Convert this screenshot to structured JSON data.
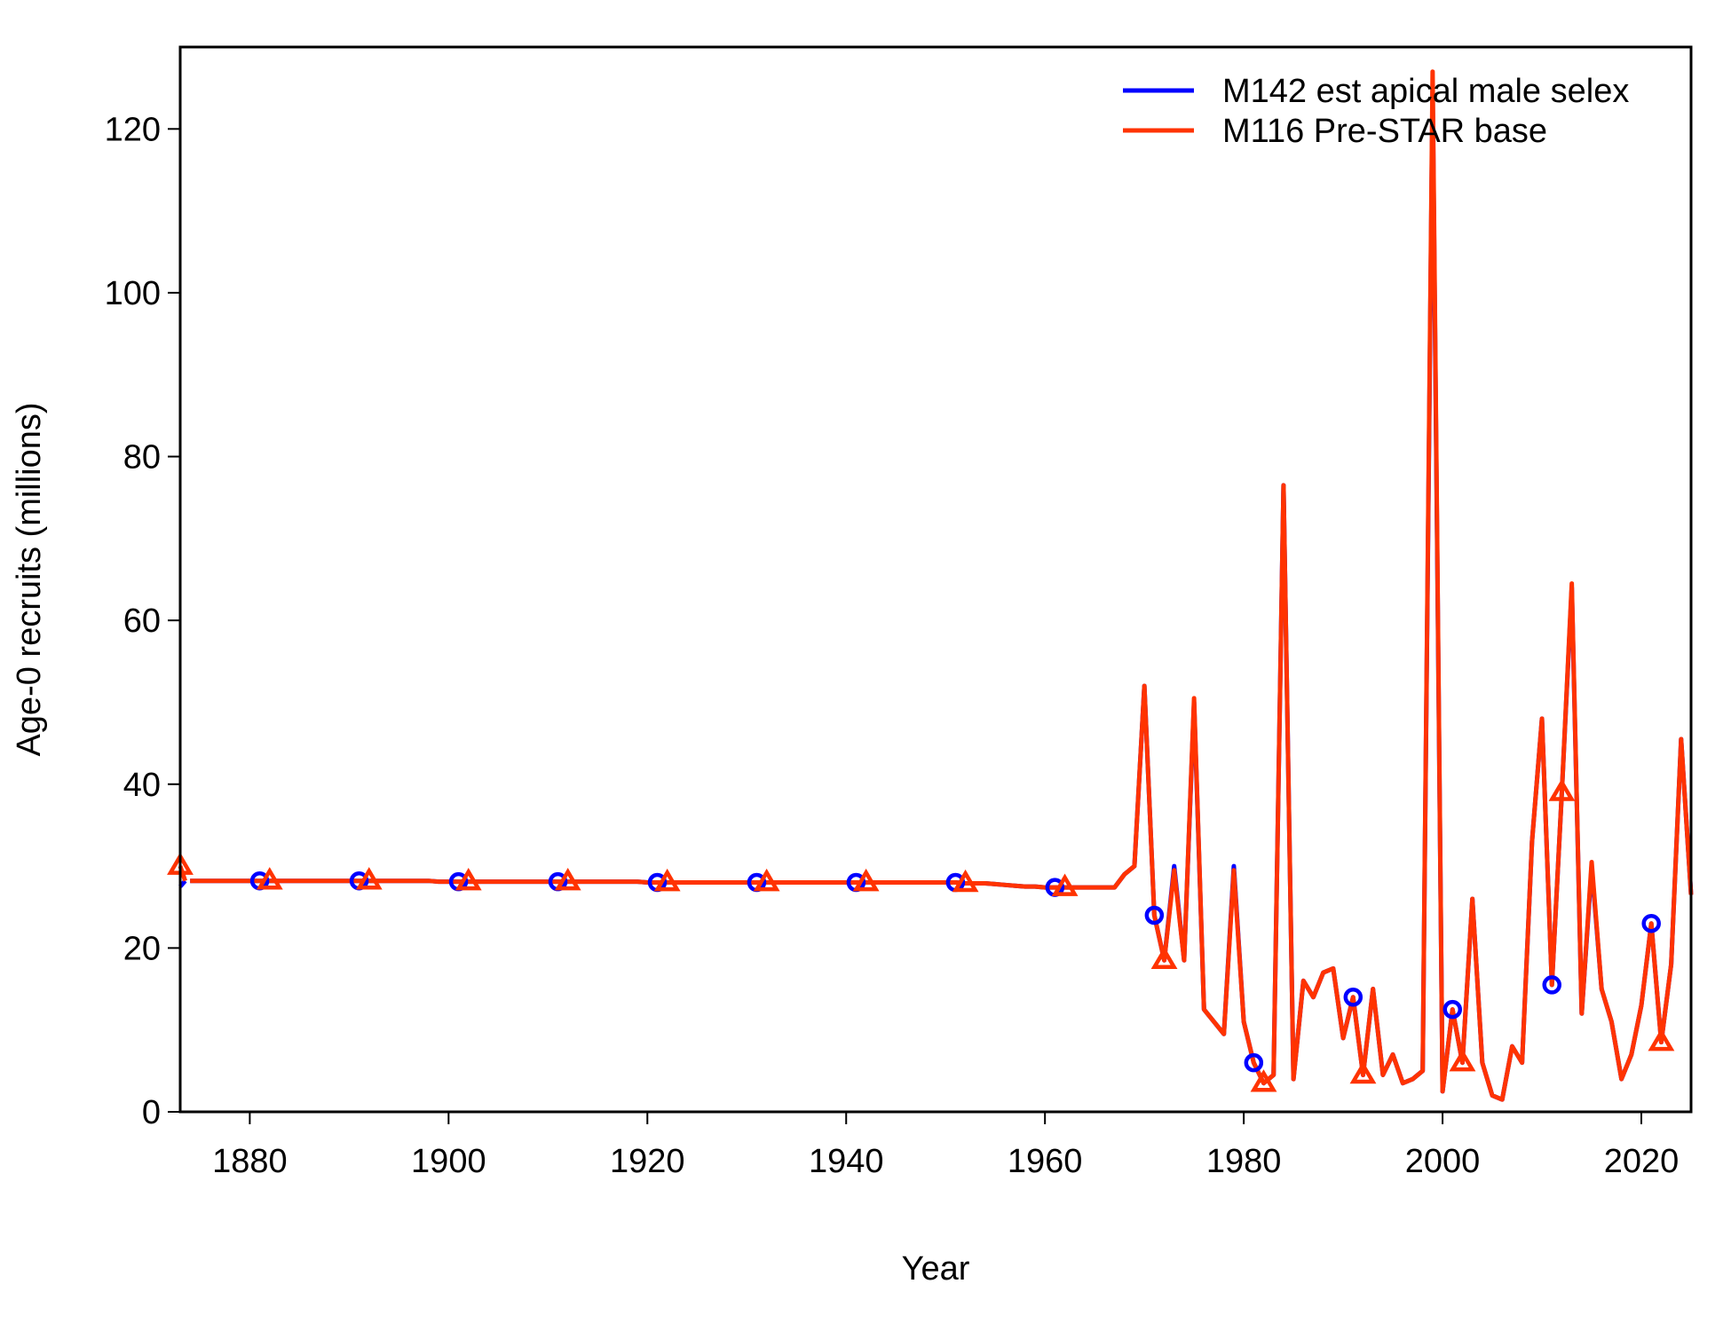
{
  "chart_data": {
    "type": "line",
    "title": "",
    "xlabel": "Year",
    "ylabel": "Age-0 recruits (millions)",
    "xlim": [
      1873,
      2025
    ],
    "ylim": [
      0,
      130
    ],
    "x_ticks": [
      1880,
      1900,
      1920,
      1940,
      1960,
      1980,
      2000,
      2020
    ],
    "y_ticks": [
      0,
      20,
      40,
      60,
      80,
      100,
      120
    ],
    "x_tick_labels": [
      "1880",
      "1900",
      "1920",
      "1940",
      "1960",
      "1980",
      "2000",
      "2020"
    ],
    "y_tick_labels": [
      "0",
      "20",
      "40",
      "60",
      "80",
      "100",
      "120"
    ],
    "grid": false,
    "legend_position": "top-right",
    "series": [
      {
        "name": "M142 est apical male selex",
        "color": "#0000ff",
        "marker": "circle",
        "x_start": 1873,
        "first_point": 27.5,
        "values": [
          28.2,
          28.2,
          28.2,
          28.2,
          28.2,
          28.2,
          28.2,
          28.2,
          28.2,
          28.2,
          28.2,
          28.2,
          28.2,
          28.2,
          28.2,
          28.2,
          28.2,
          28.2,
          28.2,
          28.2,
          28.2,
          28.2,
          28.2,
          28.2,
          28.2,
          28.1,
          28.1,
          28.1,
          28.1,
          28.1,
          28.1,
          28.1,
          28.1,
          28.1,
          28.1,
          28.1,
          28.1,
          28.1,
          28.1,
          28.1,
          28.1,
          28.1,
          28.1,
          28.1,
          28.1,
          28.1,
          28.0,
          28.0,
          28.0,
          28.0,
          28.0,
          28.0,
          28.0,
          28.0,
          28.0,
          28.0,
          28.0,
          28.0,
          28.0,
          28.0,
          28.0,
          28.0,
          28.0,
          28.0,
          28.0,
          28.0,
          28.0,
          28.0,
          28.0,
          28.0,
          28.0,
          28.0,
          28.0,
          28.0,
          28.0,
          28.0,
          28.0,
          28.0,
          27.9,
          27.9,
          27.9,
          27.8,
          27.7,
          27.6,
          27.5,
          27.5,
          27.4,
          27.4,
          27.4,
          27.4,
          27.4,
          27.4,
          27.4,
          27.4,
          29.0,
          30.0,
          52.0,
          24.0,
          18.5,
          30.0,
          18.5,
          50.0,
          12.5,
          11.0,
          9.5,
          30.0,
          11.0,
          6.0,
          3.5,
          4.5,
          76.5,
          4.0,
          16.0,
          14.0,
          17.0,
          17.5,
          9.0,
          14.0,
          4.5,
          15.0,
          4.5,
          7.0,
          3.5,
          4.0,
          5.0,
          125.0,
          2.5,
          12.5,
          6.0,
          26.0,
          6.0,
          2.0,
          1.5,
          8.0,
          6.0,
          33.0,
          48.0,
          15.5,
          39.0,
          64.0,
          12.0,
          30.0,
          15.0,
          11.0,
          4.0,
          7.0,
          13.0,
          23.0,
          8.5,
          18.0,
          45.5,
          26.5
        ],
        "marker_x": [
          1881,
          1891,
          1901,
          1911,
          1921,
          1931,
          1941,
          1951,
          1961,
          1971,
          1981,
          1991,
          2001,
          2011,
          2021
        ]
      },
      {
        "name": "M116 Pre-STAR base",
        "color": "#ff3300",
        "marker": "triangle",
        "x_start": 1873,
        "first_point": 30.0,
        "values": [
          28.2,
          28.2,
          28.2,
          28.2,
          28.2,
          28.2,
          28.2,
          28.2,
          28.2,
          28.2,
          28.2,
          28.2,
          28.2,
          28.2,
          28.2,
          28.2,
          28.2,
          28.2,
          28.2,
          28.2,
          28.2,
          28.2,
          28.2,
          28.2,
          28.2,
          28.1,
          28.1,
          28.1,
          28.1,
          28.1,
          28.1,
          28.1,
          28.1,
          28.1,
          28.1,
          28.1,
          28.1,
          28.1,
          28.1,
          28.1,
          28.1,
          28.1,
          28.1,
          28.1,
          28.1,
          28.1,
          28.0,
          28.0,
          28.0,
          28.0,
          28.0,
          28.0,
          28.0,
          28.0,
          28.0,
          28.0,
          28.0,
          28.0,
          28.0,
          28.0,
          28.0,
          28.0,
          28.0,
          28.0,
          28.0,
          28.0,
          28.0,
          28.0,
          28.0,
          28.0,
          28.0,
          28.0,
          28.0,
          28.0,
          28.0,
          28.0,
          28.0,
          28.0,
          27.9,
          27.9,
          27.9,
          27.8,
          27.7,
          27.6,
          27.5,
          27.5,
          27.4,
          27.4,
          27.4,
          27.4,
          27.4,
          27.4,
          27.4,
          27.4,
          29.0,
          30.0,
          52.0,
          24.0,
          18.5,
          29.5,
          18.5,
          50.5,
          12.5,
          11.0,
          9.5,
          29.5,
          11.0,
          6.0,
          3.5,
          4.5,
          76.5,
          4.0,
          16.0,
          14.0,
          17.0,
          17.5,
          9.0,
          14.0,
          4.5,
          15.0,
          4.5,
          7.0,
          3.5,
          4.0,
          5.0,
          127.0,
          2.5,
          12.5,
          6.0,
          26.0,
          6.0,
          2.0,
          1.5,
          8.0,
          6.0,
          33.0,
          48.0,
          15.5,
          39.0,
          64.5,
          12.0,
          30.5,
          15.0,
          11.0,
          4.0,
          7.0,
          13.0,
          23.0,
          8.5,
          18.0,
          45.5,
          26.5
        ],
        "marker_x": [
          1873,
          1882,
          1892,
          1902,
          1912,
          1922,
          1932,
          1942,
          1952,
          1962,
          1972,
          1982,
          1992,
          2002,
          2012,
          2022
        ]
      }
    ]
  }
}
